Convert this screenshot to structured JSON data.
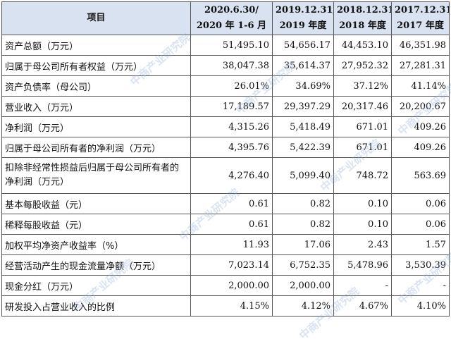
{
  "headers": {
    "item": "项目",
    "cols": [
      {
        "line1": "2020.6.30/",
        "line2": "2020 年 1-6 月"
      },
      {
        "line1": "2019.12.31/",
        "line2": "2019 年度"
      },
      {
        "line1": "2018.12.31/",
        "line2": "2018 年度"
      },
      {
        "line1": "2017.12.31/",
        "line2": "2017 年度"
      }
    ]
  },
  "rows": [
    {
      "label": "资产总额（万元）",
      "values": [
        "51,495.10",
        "54,656.17",
        "44,453.10",
        "46,351.98"
      ]
    },
    {
      "label": "归属于母公司所有者权益（万元）",
      "values": [
        "38,047.38",
        "35,614.37",
        "27,952.32",
        "27,281.31"
      ]
    },
    {
      "label": "资产负债率（母公司）",
      "values": [
        "26.01%",
        "34.69%",
        "37.12%",
        "41.14%"
      ]
    },
    {
      "label": "营业收入（万元）",
      "values": [
        "17,189.57",
        "29,397.29",
        "20,317.46",
        "20,200.67"
      ]
    },
    {
      "label": "净利润（万元）",
      "values": [
        "4,315.26",
        "5,418.49",
        "671.01",
        "409.26"
      ]
    },
    {
      "label": "归属于母公司所有者的净利润（万元）",
      "values": [
        "4,395.76",
        "5,422.39",
        "671.01",
        "409.26"
      ]
    },
    {
      "label": "扣除非经常性损益后归属于母公司所有者的净利润（万元）",
      "values": [
        "4,276.40",
        "5,099.40",
        "748.72",
        "563.69"
      ]
    },
    {
      "label": "基本每股收益（元）",
      "values": [
        "0.61",
        "0.82",
        "0.10",
        "0.06"
      ]
    },
    {
      "label": "稀释每股收益（元）",
      "values": [
        "0.61",
        "0.82",
        "0.10",
        "0.06"
      ]
    },
    {
      "label": "加权平均净资产收益率（%）",
      "values": [
        "11.93",
        "17.06",
        "2.43",
        "1.57"
      ]
    },
    {
      "label": "经营活动产生的现金流量净额（万元）",
      "values": [
        "7,023.14",
        "6,752.35",
        "5,478.96",
        "3,530.39"
      ]
    },
    {
      "label": "现金分红（万元）",
      "values": [
        "2,000.00",
        "2,000.00",
        "-",
        "-"
      ]
    },
    {
      "label": "研发投入占营业收入的比例",
      "values": [
        "4.15%",
        "4.12%",
        "4.67%",
        "4.10%"
      ]
    }
  ],
  "watermark": "中商产业研究院",
  "colors": {
    "header_bg": "#d9e2f1",
    "border": "#555555"
  }
}
